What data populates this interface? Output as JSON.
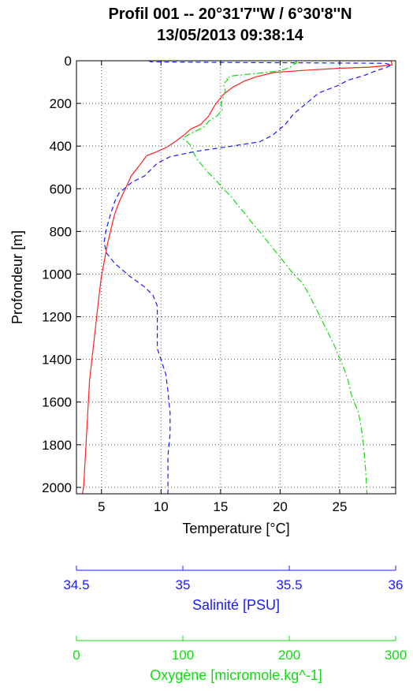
{
  "title_line1": "Profil 001 -- 20°31'7''W / 6°30'8''N",
  "title_line2": "13/05/2013 09:38:14",
  "chart_data": {
    "type": "line",
    "y_axis": {
      "label": "Profondeur [m]",
      "range": [
        2030,
        0
      ],
      "ticks": [
        0,
        200,
        400,
        600,
        800,
        1000,
        1200,
        1400,
        1600,
        1800,
        2000
      ],
      "inverted": true
    },
    "x_axes": [
      {
        "key": "temperature",
        "label": "Temperature [°C]",
        "range": [
          2.9,
          29.7
        ],
        "ticks": [
          5,
          10,
          15,
          20,
          25
        ],
        "tick_labels": [
          "5",
          "10",
          "15",
          "20",
          "25"
        ],
        "color": "#000000"
      },
      {
        "key": "salinity",
        "label": "Salinité [PSU]",
        "range": [
          34.5,
          36
        ],
        "ticks": [
          34.5,
          35,
          35.5,
          36
        ],
        "tick_labels": [
          "34.5",
          "35",
          "35.5",
          "36"
        ],
        "color": "#1a1aff"
      },
      {
        "key": "oxygen",
        "label": "Oxygène [micromole.kg^-1]",
        "range": [
          0,
          300
        ],
        "ticks": [
          0,
          100,
          200,
          300
        ],
        "tick_labels": [
          "0",
          "100",
          "200",
          "300"
        ],
        "color": "#10dd10"
      }
    ],
    "grid": true,
    "series": [
      {
        "key": "temperature",
        "axis": "temperature",
        "color": "#ff2020",
        "dash": "",
        "points": [
          [
            29.3,
            0
          ],
          [
            29.4,
            20
          ],
          [
            27.5,
            30
          ],
          [
            25.0,
            35
          ],
          [
            22.0,
            45
          ],
          [
            19.5,
            55
          ],
          [
            18.0,
            75
          ],
          [
            17.0,
            95
          ],
          [
            16.0,
            125
          ],
          [
            15.2,
            160
          ],
          [
            14.5,
            210
          ],
          [
            14.0,
            260
          ],
          [
            13.3,
            300
          ],
          [
            12.5,
            320
          ],
          [
            12.0,
            345
          ],
          [
            11.3,
            375
          ],
          [
            10.5,
            405
          ],
          [
            9.5,
            430
          ],
          [
            8.8,
            445
          ],
          [
            8.6,
            460
          ],
          [
            8.2,
            490
          ],
          [
            7.5,
            540
          ],
          [
            7.0,
            600
          ],
          [
            6.5,
            660
          ],
          [
            6.1,
            720
          ],
          [
            5.8,
            790
          ],
          [
            5.5,
            860
          ],
          [
            5.2,
            950
          ],
          [
            5.0,
            1010
          ],
          [
            4.8,
            1100
          ],
          [
            4.6,
            1200
          ],
          [
            4.4,
            1300
          ],
          [
            4.2,
            1400
          ],
          [
            4.0,
            1500
          ],
          [
            3.9,
            1600
          ],
          [
            3.8,
            1700
          ],
          [
            3.7,
            1800
          ],
          [
            3.6,
            1900
          ],
          [
            3.5,
            2000
          ],
          [
            3.4,
            2030
          ]
        ]
      },
      {
        "key": "salinity",
        "axis": "salinity",
        "color": "#1a1aff",
        "dash": "6,4",
        "points": [
          [
            34.84,
            0
          ],
          [
            34.85,
            5
          ],
          [
            35.2,
            8
          ],
          [
            35.6,
            10
          ],
          [
            35.95,
            12
          ],
          [
            35.98,
            20
          ],
          [
            35.96,
            30
          ],
          [
            35.9,
            50
          ],
          [
            35.85,
            70
          ],
          [
            35.78,
            90
          ],
          [
            35.72,
            120
          ],
          [
            35.64,
            150
          ],
          [
            35.58,
            200
          ],
          [
            35.52,
            250
          ],
          [
            35.48,
            300
          ],
          [
            35.42,
            350
          ],
          [
            35.36,
            380
          ],
          [
            35.2,
            405
          ],
          [
            35.06,
            425
          ],
          [
            34.94,
            450
          ],
          [
            34.88,
            480
          ],
          [
            34.85,
            510
          ],
          [
            34.82,
            540
          ],
          [
            34.76,
            570
          ],
          [
            34.7,
            620
          ],
          [
            34.68,
            660
          ],
          [
            34.66,
            720
          ],
          [
            34.64,
            790
          ],
          [
            34.63,
            850
          ],
          [
            34.64,
            900
          ],
          [
            34.68,
            950
          ],
          [
            34.75,
            1010
          ],
          [
            34.82,
            1060
          ],
          [
            34.86,
            1100
          ],
          [
            34.88,
            1150
          ],
          [
            34.88,
            1250
          ],
          [
            34.88,
            1350
          ],
          [
            34.9,
            1410
          ],
          [
            34.92,
            1470
          ],
          [
            34.93,
            1550
          ],
          [
            34.94,
            1650
          ],
          [
            34.94,
            1750
          ],
          [
            34.93,
            1850
          ],
          [
            34.93,
            1950
          ],
          [
            34.93,
            2030
          ]
        ]
      },
      {
        "key": "oxygen",
        "axis": "oxygen",
        "color": "#10dd10",
        "dash": "8,3,2,3",
        "points": [
          [
            206,
            0
          ],
          [
            207,
            10
          ],
          [
            203,
            20
          ],
          [
            201,
            30
          ],
          [
            196,
            40
          ],
          [
            187,
            50
          ],
          [
            168,
            60
          ],
          [
            148,
            70
          ],
          [
            141,
            80
          ],
          [
            142,
            90
          ],
          [
            140,
            100
          ],
          [
            138,
            110
          ],
          [
            140,
            140
          ],
          [
            138,
            170
          ],
          [
            136,
            200
          ],
          [
            137,
            230
          ],
          [
            132,
            260
          ],
          [
            125,
            280
          ],
          [
            120,
            310
          ],
          [
            112,
            330
          ],
          [
            104,
            350
          ],
          [
            100,
            365
          ],
          [
            104,
            380
          ],
          [
            108,
            400
          ],
          [
            110,
            430
          ],
          [
            113,
            460
          ],
          [
            118,
            490
          ],
          [
            123,
            520
          ],
          [
            131,
            560
          ],
          [
            138,
            600
          ],
          [
            146,
            640
          ],
          [
            152,
            680
          ],
          [
            159,
            720
          ],
          [
            165,
            760
          ],
          [
            172,
            800
          ],
          [
            180,
            850
          ],
          [
            188,
            900
          ],
          [
            196,
            950
          ],
          [
            204,
            1000
          ],
          [
            212,
            1040
          ],
          [
            218,
            1090
          ],
          [
            224,
            1150
          ],
          [
            230,
            1210
          ],
          [
            236,
            1270
          ],
          [
            242,
            1330
          ],
          [
            247,
            1390
          ],
          [
            252,
            1450
          ],
          [
            256,
            1510
          ],
          [
            258,
            1560
          ],
          [
            261,
            1600
          ],
          [
            265,
            1650
          ],
          [
            267,
            1700
          ],
          [
            269,
            1760
          ],
          [
            270,
            1820
          ],
          [
            271,
            1870
          ],
          [
            272,
            1940
          ],
          [
            273,
            2030
          ]
        ]
      }
    ]
  }
}
